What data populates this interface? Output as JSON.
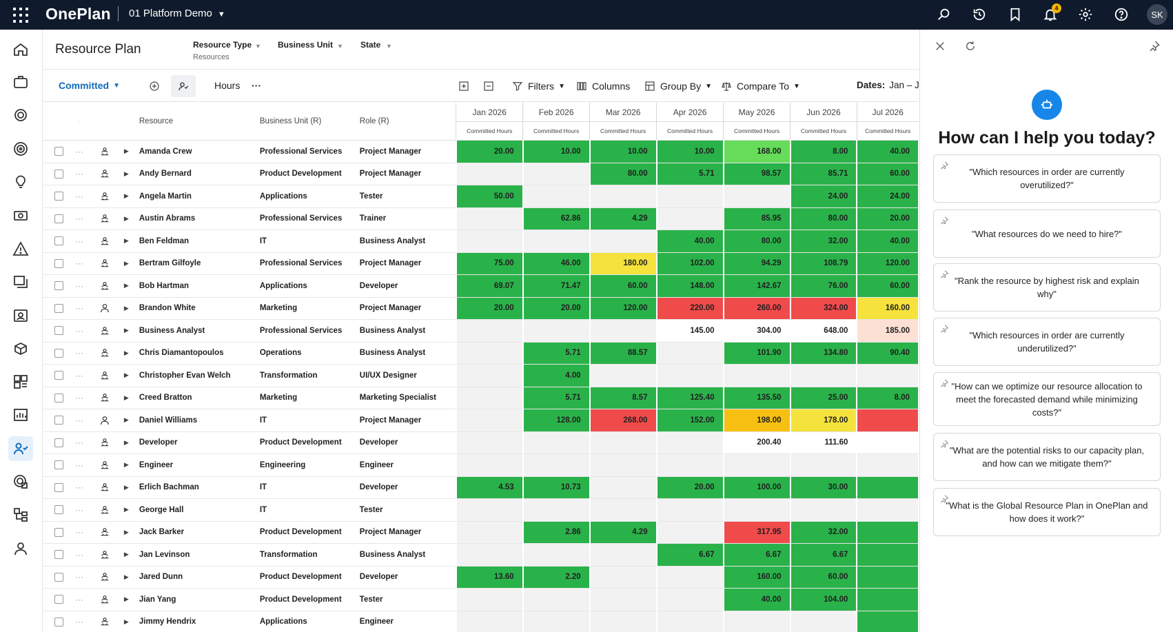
{
  "topbar": {
    "brand": "OnePlan",
    "workspace": "01 Platform Demo",
    "notifications": "4",
    "avatar": "SK"
  },
  "page": {
    "title": "Resource Plan"
  },
  "filters": [
    {
      "label": "Resource Type",
      "sub": "Resources"
    },
    {
      "label": "Business Unit",
      "sub": ""
    },
    {
      "label": "State",
      "sub": ""
    }
  ],
  "toolbar": {
    "view": "Committed",
    "unit": "Hours",
    "more": "···",
    "filters": "Filters",
    "columns": "Columns",
    "group_by": "Group By",
    "compare_to": "Compare To",
    "dates_label": "Dates:",
    "dates_value": "Jan – Jul"
  },
  "columns": {
    "resource": "Resource",
    "business_unit": "Business Unit (R)",
    "role": "Role (R)",
    "months": [
      "Jan 2026",
      "Feb 2026",
      "Mar 2026",
      "Apr 2026",
      "May 2026",
      "Jun 2026",
      "Jul 2026"
    ],
    "sub": "Committed Hours"
  },
  "rows": [
    {
      "name": "Amanda Crew",
      "bu": "Professional Services",
      "role": "Project Manager",
      "icon": "group",
      "cells": [
        [
          "20.00",
          "g"
        ],
        [
          "10.00",
          "g"
        ],
        [
          "10.00",
          "g"
        ],
        [
          "10.00",
          "g"
        ],
        [
          "168.00",
          "lg"
        ],
        [
          "8.00",
          "g"
        ],
        [
          "40.00",
          "g"
        ]
      ]
    },
    {
      "name": "Andy Bernard",
      "bu": "Product Development",
      "role": "Project Manager",
      "icon": "group",
      "cells": [
        [
          "",
          "e"
        ],
        [
          "",
          "e"
        ],
        [
          "80.00",
          "g"
        ],
        [
          "5.71",
          "g"
        ],
        [
          "98.57",
          "g"
        ],
        [
          "85.71",
          "g"
        ],
        [
          "60.00",
          "g"
        ]
      ]
    },
    {
      "name": "Angela Martin",
      "bu": "Applications",
      "role": "Tester",
      "icon": "group",
      "cells": [
        [
          "50.00",
          "g"
        ],
        [
          "",
          "e"
        ],
        [
          "",
          "e"
        ],
        [
          "",
          "e"
        ],
        [
          "",
          "e"
        ],
        [
          "24.00",
          "g"
        ],
        [
          "24.00",
          "g"
        ]
      ]
    },
    {
      "name": "Austin Abrams",
      "bu": "Professional Services",
      "role": "Trainer",
      "icon": "group",
      "cells": [
        [
          "",
          "e"
        ],
        [
          "62.86",
          "g"
        ],
        [
          "4.29",
          "g"
        ],
        [
          "",
          "e"
        ],
        [
          "85.95",
          "g"
        ],
        [
          "80.00",
          "g"
        ],
        [
          "20.00",
          "g"
        ]
      ]
    },
    {
      "name": "Ben Feldman",
      "bu": "IT",
      "role": "Business Analyst",
      "icon": "group",
      "cells": [
        [
          "",
          "e"
        ],
        [
          "",
          "e"
        ],
        [
          "",
          "e"
        ],
        [
          "40.00",
          "g"
        ],
        [
          "80.00",
          "g"
        ],
        [
          "32.00",
          "g"
        ],
        [
          "40.00",
          "g"
        ]
      ]
    },
    {
      "name": "Bertram Gilfoyle",
      "bu": "Professional Services",
      "role": "Project Manager",
      "icon": "group",
      "cells": [
        [
          "75.00",
          "g"
        ],
        [
          "46.00",
          "g"
        ],
        [
          "180.00",
          "y"
        ],
        [
          "102.00",
          "g"
        ],
        [
          "94.29",
          "g"
        ],
        [
          "108.79",
          "g"
        ],
        [
          "120.00",
          "g"
        ]
      ]
    },
    {
      "name": "Bob Hartman",
      "bu": "Applications",
      "role": "Developer",
      "icon": "group",
      "cells": [
        [
          "69.07",
          "g"
        ],
        [
          "71.47",
          "g"
        ],
        [
          "60.00",
          "g"
        ],
        [
          "148.00",
          "g"
        ],
        [
          "142.67",
          "g"
        ],
        [
          "76.00",
          "g"
        ],
        [
          "60.00",
          "g"
        ]
      ]
    },
    {
      "name": "Brandon White",
      "bu": "Marketing",
      "role": "Project Manager",
      "icon": "person",
      "cells": [
        [
          "20.00",
          "g"
        ],
        [
          "20.00",
          "g"
        ],
        [
          "120.00",
          "g"
        ],
        [
          "220.00",
          "r"
        ],
        [
          "260.00",
          "r"
        ],
        [
          "324.00",
          "r"
        ],
        [
          "160.00",
          "y"
        ]
      ]
    },
    {
      "name": "Business Analyst",
      "bu": "Professional Services",
      "role": "Business Analyst",
      "icon": "group",
      "cells": [
        [
          "",
          "e"
        ],
        [
          "",
          "e"
        ],
        [
          "",
          "e"
        ],
        [
          "145.00",
          "w"
        ],
        [
          "304.00",
          "w"
        ],
        [
          "648.00",
          "w"
        ],
        [
          "185.00",
          "p"
        ]
      ]
    },
    {
      "name": "Chris Diamantopoulos",
      "bu": "Operations",
      "role": "Business Analyst",
      "icon": "group",
      "cells": [
        [
          "",
          "e"
        ],
        [
          "5.71",
          "g"
        ],
        [
          "88.57",
          "g"
        ],
        [
          "",
          "e"
        ],
        [
          "101.90",
          "g"
        ],
        [
          "134.80",
          "g"
        ],
        [
          "90.40",
          "g"
        ]
      ]
    },
    {
      "name": "Christopher Evan Welch",
      "bu": "Transformation",
      "role": "UI/UX Designer",
      "icon": "group",
      "cells": [
        [
          "",
          "e"
        ],
        [
          "4.00",
          "g"
        ],
        [
          "",
          "e"
        ],
        [
          "",
          "e"
        ],
        [
          "",
          "e"
        ],
        [
          "",
          "e"
        ],
        [
          "",
          "e"
        ]
      ]
    },
    {
      "name": "Creed Bratton",
      "bu": "Marketing",
      "role": "Marketing Specialist",
      "icon": "group",
      "cells": [
        [
          "",
          "e"
        ],
        [
          "5.71",
          "g"
        ],
        [
          "8.57",
          "g"
        ],
        [
          "125.40",
          "g"
        ],
        [
          "135.50",
          "g"
        ],
        [
          "25.00",
          "g"
        ],
        [
          "8.00",
          "g"
        ]
      ]
    },
    {
      "name": "Daniel Williams",
      "bu": "IT",
      "role": "Project Manager",
      "icon": "person",
      "cells": [
        [
          "",
          "e"
        ],
        [
          "128.00",
          "g"
        ],
        [
          "268.00",
          "r"
        ],
        [
          "152.00",
          "g"
        ],
        [
          "198.00",
          "o"
        ],
        [
          "178.00",
          "y"
        ],
        [
          "",
          "r"
        ]
      ]
    },
    {
      "name": "Developer",
      "bu": "Product Development",
      "role": "Developer",
      "icon": "group",
      "cells": [
        [
          "",
          "e"
        ],
        [
          "",
          "e"
        ],
        [
          "",
          "e"
        ],
        [
          "",
          "e"
        ],
        [
          "200.40",
          "w"
        ],
        [
          "111.60",
          "w"
        ],
        [
          "",
          "w"
        ]
      ]
    },
    {
      "name": "Engineer",
      "bu": "Engineering",
      "role": "Engineer",
      "icon": "group",
      "cells": [
        [
          "",
          "e"
        ],
        [
          "",
          "e"
        ],
        [
          "",
          "e"
        ],
        [
          "",
          "e"
        ],
        [
          "",
          "e"
        ],
        [
          "",
          "e"
        ],
        [
          "",
          "e"
        ]
      ]
    },
    {
      "name": "Erlich Bachman",
      "bu": "IT",
      "role": "Developer",
      "icon": "group",
      "cells": [
        [
          "4.53",
          "g"
        ],
        [
          "10.73",
          "g"
        ],
        [
          "",
          "e"
        ],
        [
          "20.00",
          "g"
        ],
        [
          "100.00",
          "g"
        ],
        [
          "30.00",
          "g"
        ],
        [
          "",
          "g"
        ]
      ]
    },
    {
      "name": "George Hall",
      "bu": "IT",
      "role": "Tester",
      "icon": "group",
      "cells": [
        [
          "",
          "e"
        ],
        [
          "",
          "e"
        ],
        [
          "",
          "e"
        ],
        [
          "",
          "e"
        ],
        [
          "",
          "e"
        ],
        [
          "",
          "e"
        ],
        [
          "",
          "e"
        ]
      ]
    },
    {
      "name": "Jack Barker",
      "bu": "Product Development",
      "role": "Project Manager",
      "icon": "group",
      "cells": [
        [
          "",
          "e"
        ],
        [
          "2.86",
          "g"
        ],
        [
          "4.29",
          "g"
        ],
        [
          "",
          "e"
        ],
        [
          "317.95",
          "r"
        ],
        [
          "32.00",
          "g"
        ],
        [
          "",
          "g"
        ]
      ]
    },
    {
      "name": "Jan Levinson",
      "bu": "Transformation",
      "role": "Business Analyst",
      "icon": "group",
      "cells": [
        [
          "",
          "e"
        ],
        [
          "",
          "e"
        ],
        [
          "",
          "e"
        ],
        [
          "6.67",
          "g"
        ],
        [
          "6.67",
          "g"
        ],
        [
          "6.67",
          "g"
        ],
        [
          "",
          "g"
        ]
      ]
    },
    {
      "name": "Jared Dunn",
      "bu": "Product Development",
      "role": "Developer",
      "icon": "group",
      "cells": [
        [
          "13.60",
          "g"
        ],
        [
          "2.20",
          "g"
        ],
        [
          "",
          "e"
        ],
        [
          "",
          "e"
        ],
        [
          "160.00",
          "g"
        ],
        [
          "60.00",
          "g"
        ],
        [
          "",
          "g"
        ]
      ]
    },
    {
      "name": "Jian Yang",
      "bu": "Product Development",
      "role": "Tester",
      "icon": "group",
      "cells": [
        [
          "",
          "e"
        ],
        [
          "",
          "e"
        ],
        [
          "",
          "e"
        ],
        [
          "",
          "e"
        ],
        [
          "40.00",
          "g"
        ],
        [
          "104.00",
          "g"
        ],
        [
          "",
          "g"
        ]
      ]
    },
    {
      "name": "Jimmy Hendrix",
      "bu": "Applications",
      "role": "Engineer",
      "icon": "group",
      "cells": [
        [
          "",
          "e"
        ],
        [
          "",
          "e"
        ],
        [
          "",
          "e"
        ],
        [
          "",
          "e"
        ],
        [
          "",
          "e"
        ],
        [
          "",
          "e"
        ],
        [
          "",
          "g"
        ]
      ]
    }
  ],
  "assistant": {
    "heading": "How can I help you today?",
    "prompts": [
      "\"Which resources in order are currently overutilized?\"",
      "\"What resources do we need to hire?\"",
      "\"Rank the resource by highest risk and explain why\"",
      "\"Which resources in order are currently underutilized?\"",
      "\"How can we optimize our resource allocation to meet the forecasted demand while minimizing costs?\"",
      "\"What are the potential risks to our capacity plan, and how can we mitigate them?\"",
      "\"What is the Global Resource Plan in OnePlan and how does it work?\""
    ]
  },
  "colors": {
    "topbar": "#0f1b2d",
    "accent": "#0f6cbd",
    "green": "#2ab24a",
    "light_green": "#66dc5a",
    "yellow": "#f5e23c",
    "orange": "#f7bf12",
    "red": "#f04b4b",
    "pink": "#fde0d4"
  }
}
